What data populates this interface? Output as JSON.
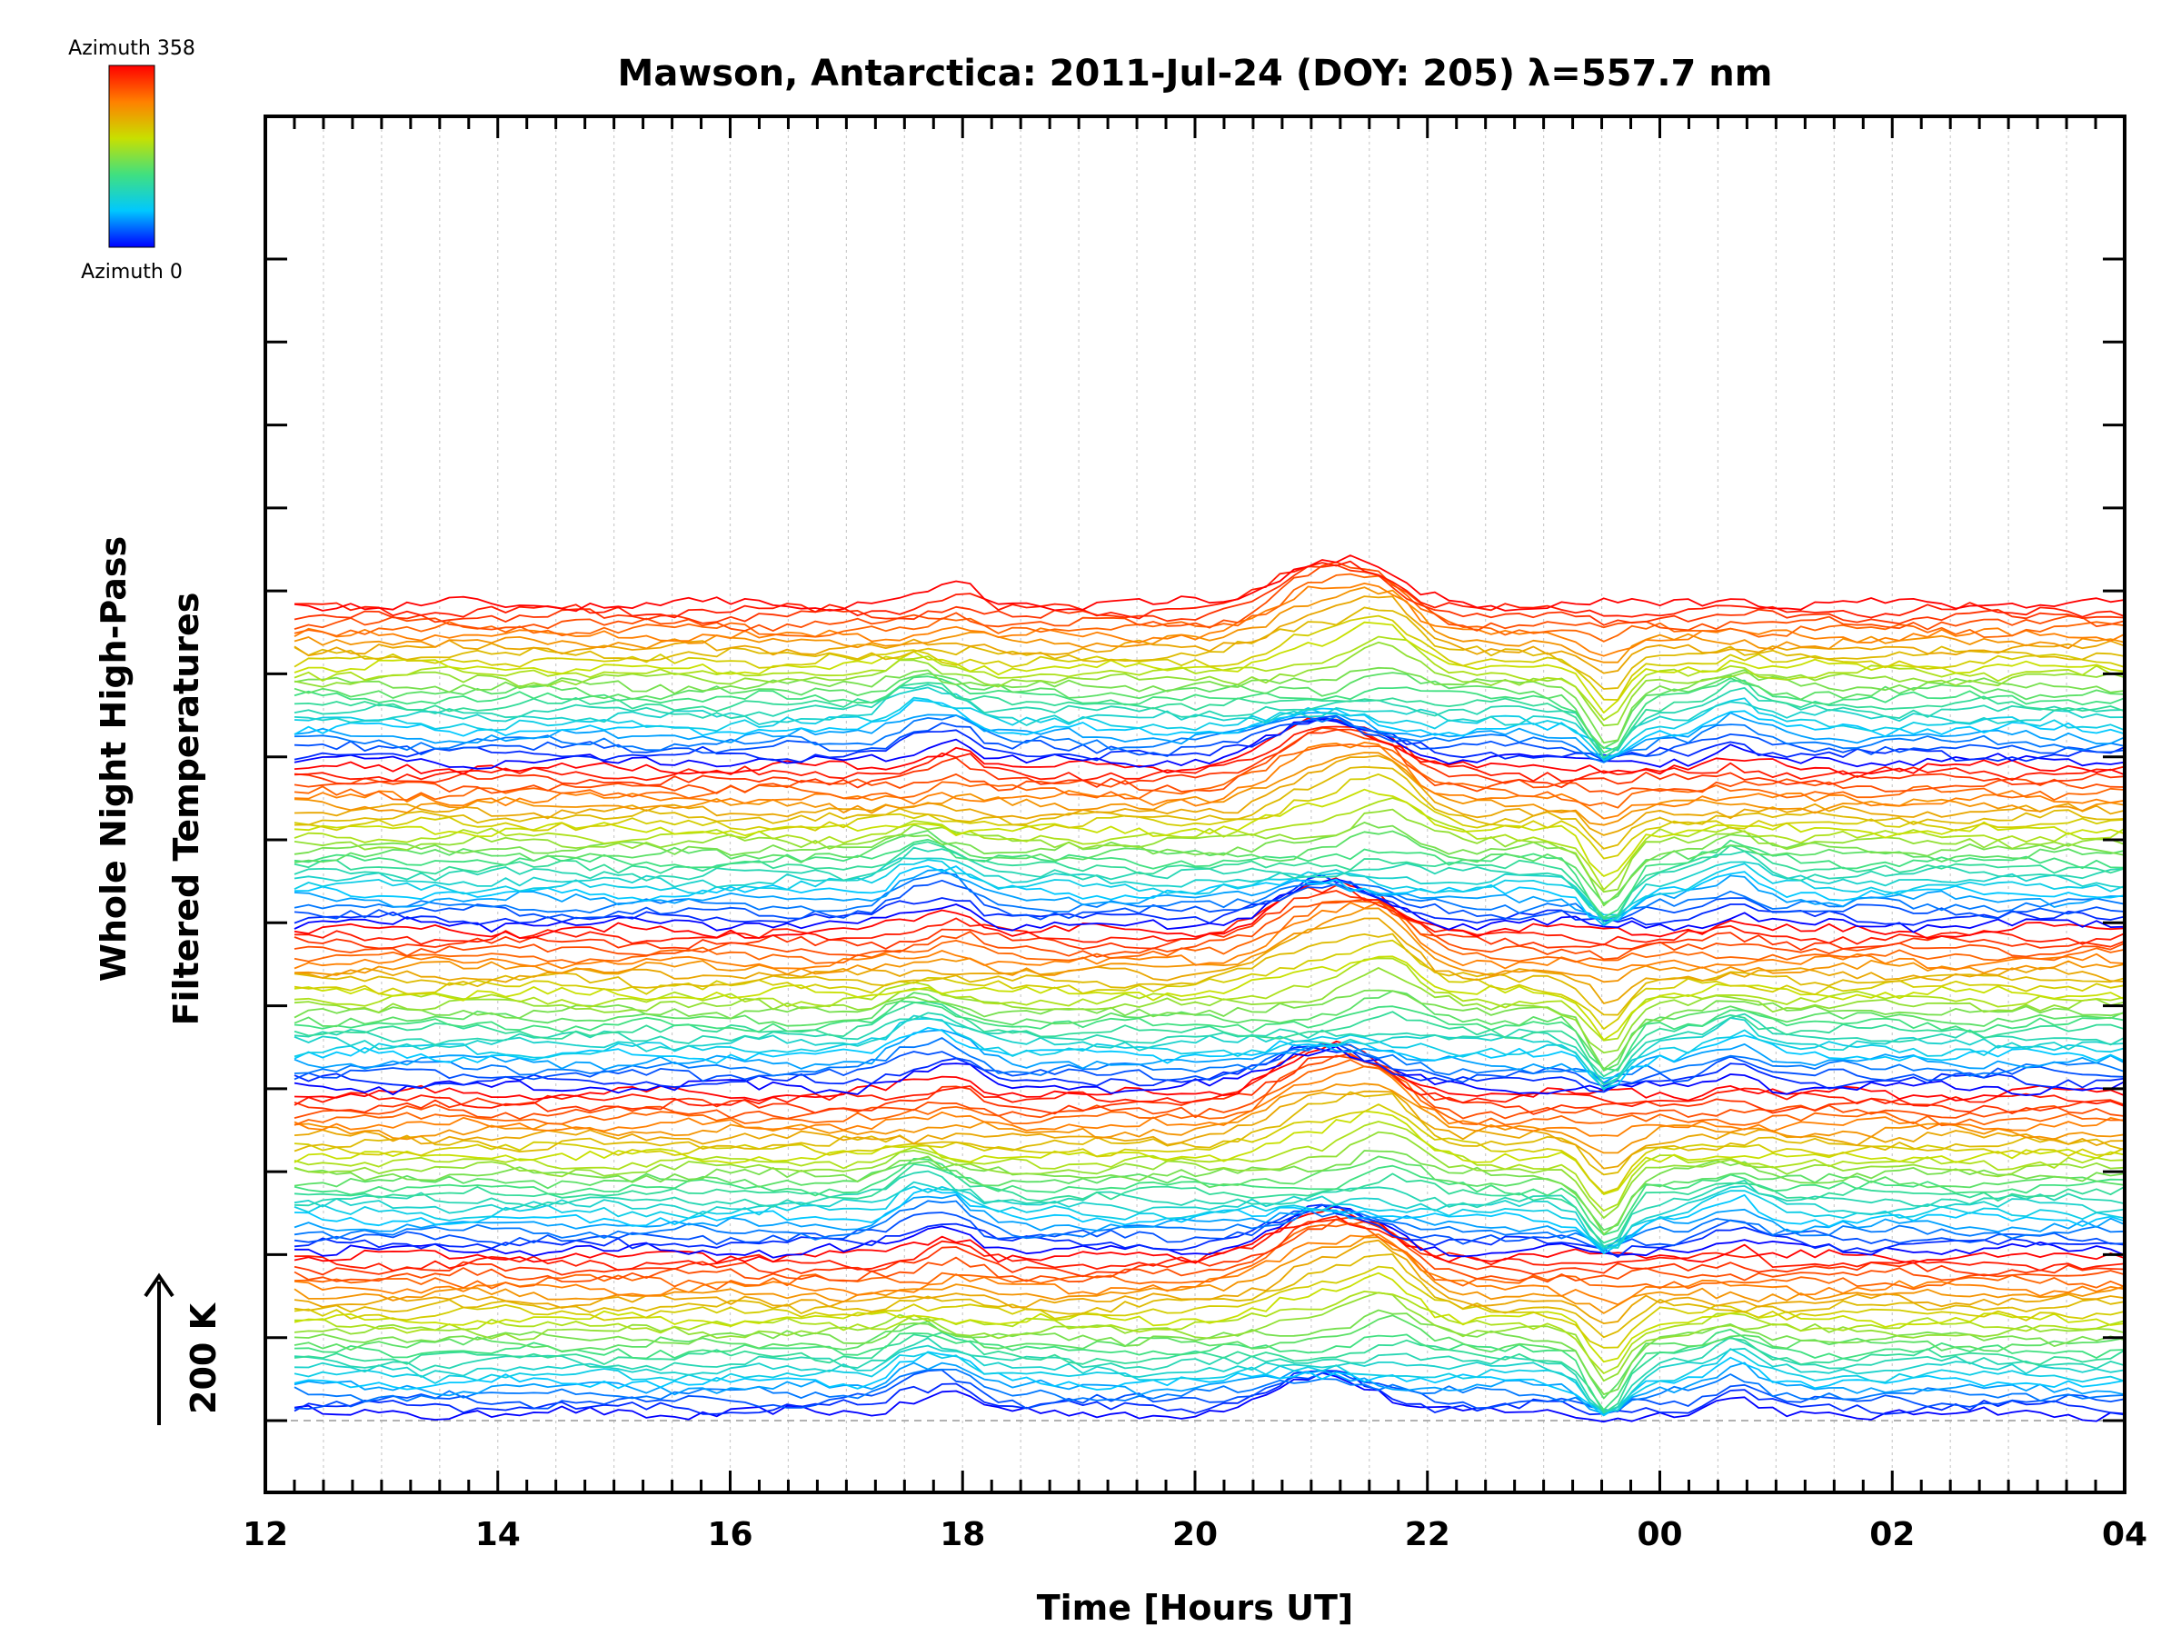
{
  "chart_data": {
    "type": "line",
    "title": "Mawson, Antarctica: 2011-Jul-24 (DOY: 205) λ=557.7 nm",
    "xlabel": "Time [Hours UT]",
    "ylabel_line1": "Whole Night High-Pass",
    "ylabel_line2": "Filtered Temperatures",
    "scale_label": "200 K",
    "colorbar": {
      "top_label": "Azimuth 358",
      "bottom_label": "Azimuth 0"
    },
    "x_tick_labels": [
      "12",
      "14",
      "16",
      "18",
      "20",
      "22",
      "00",
      "02",
      "04"
    ],
    "x_range_hours_elapsed": [
      12,
      28
    ],
    "data_start_hour": 12.25,
    "data_end_hour": 28,
    "n_traces": 130,
    "n_major_y_ticks": 15,
    "grid": "vertical dotted lines every 0.5 h",
    "colormap": [
      "#0000ff",
      "#00c8ff",
      "#40e080",
      "#c8e000",
      "#ff8000",
      "#ff0000"
    ],
    "events": [
      {
        "center_hour": 17.6,
        "width_h": 0.28,
        "amplitude": 28
      },
      {
        "center_hour": 17.95,
        "width_h": 0.25,
        "amplitude": 22
      },
      {
        "center_hour": 21.1,
        "width_h": 0.55,
        "amplitude": 55
      },
      {
        "center_hour": 21.65,
        "width_h": 0.35,
        "amplitude": 40
      },
      {
        "center_hour": 23.55,
        "width_h": 0.22,
        "amplitude": -60
      },
      {
        "center_hour": 24.65,
        "width_h": 0.25,
        "amplitude": 22
      }
    ]
  }
}
